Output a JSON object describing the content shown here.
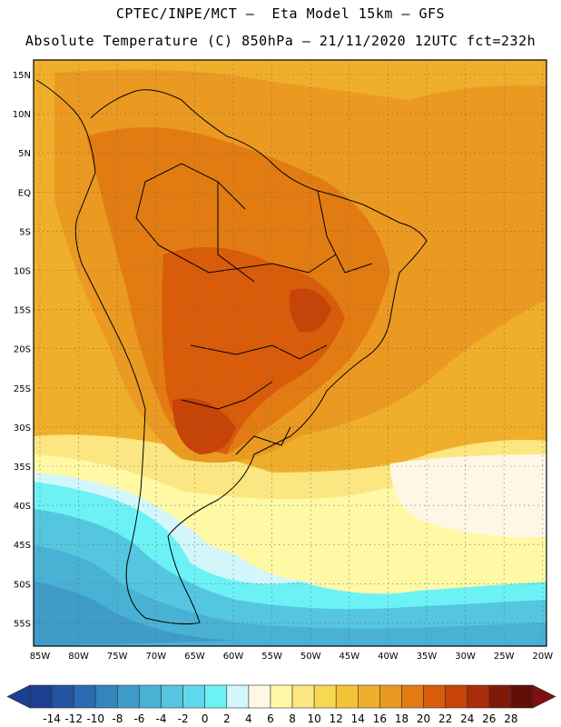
{
  "title": {
    "line1": "CPTEC/INPE/MCT –  Eta Model 15km – GFS",
    "line2": "Absolute Temperature (C) 850hPa – 21/11/2020 12UTC fct=232h"
  },
  "map": {
    "lat_labels": [
      "15N",
      "10N",
      "5N",
      "EQ",
      "5S",
      "10S",
      "15S",
      "20S",
      "25S",
      "30S",
      "35S",
      "40S",
      "45S",
      "50S",
      "55S"
    ],
    "lon_labels": [
      "85W",
      "80W",
      "75W",
      "70W",
      "65W",
      "60W",
      "55W",
      "50W",
      "45W",
      "40W",
      "35W",
      "30W",
      "25W",
      "20W"
    ],
    "grid": "dotted"
  },
  "colorbar": {
    "ticks": [
      "-14",
      "-12",
      "-10",
      "-8",
      "-6",
      "-4",
      "-2",
      "0",
      "2",
      "4",
      "6",
      "8",
      "10",
      "12",
      "14",
      "16",
      "18",
      "20",
      "22",
      "24",
      "26",
      "28"
    ],
    "colors": [
      "#1d3f8f",
      "#22549f",
      "#2b6aaf",
      "#3584bd",
      "#3f9bc8",
      "#49b2d4",
      "#54c6e0",
      "#5fd8eb",
      "#6cf2f5",
      "#d3f6fa",
      "#fff7e6",
      "#fff9a6",
      "#fbe681",
      "#f8d84f",
      "#f3c33a",
      "#f0af2b",
      "#ea9a21",
      "#e27c12",
      "#d95c0a",
      "#c74409",
      "#a82d08",
      "#7e1a08",
      "#5f0f05"
    ],
    "underflow_color": "#1d3f8f",
    "overflow_color": "#7e1010"
  }
}
